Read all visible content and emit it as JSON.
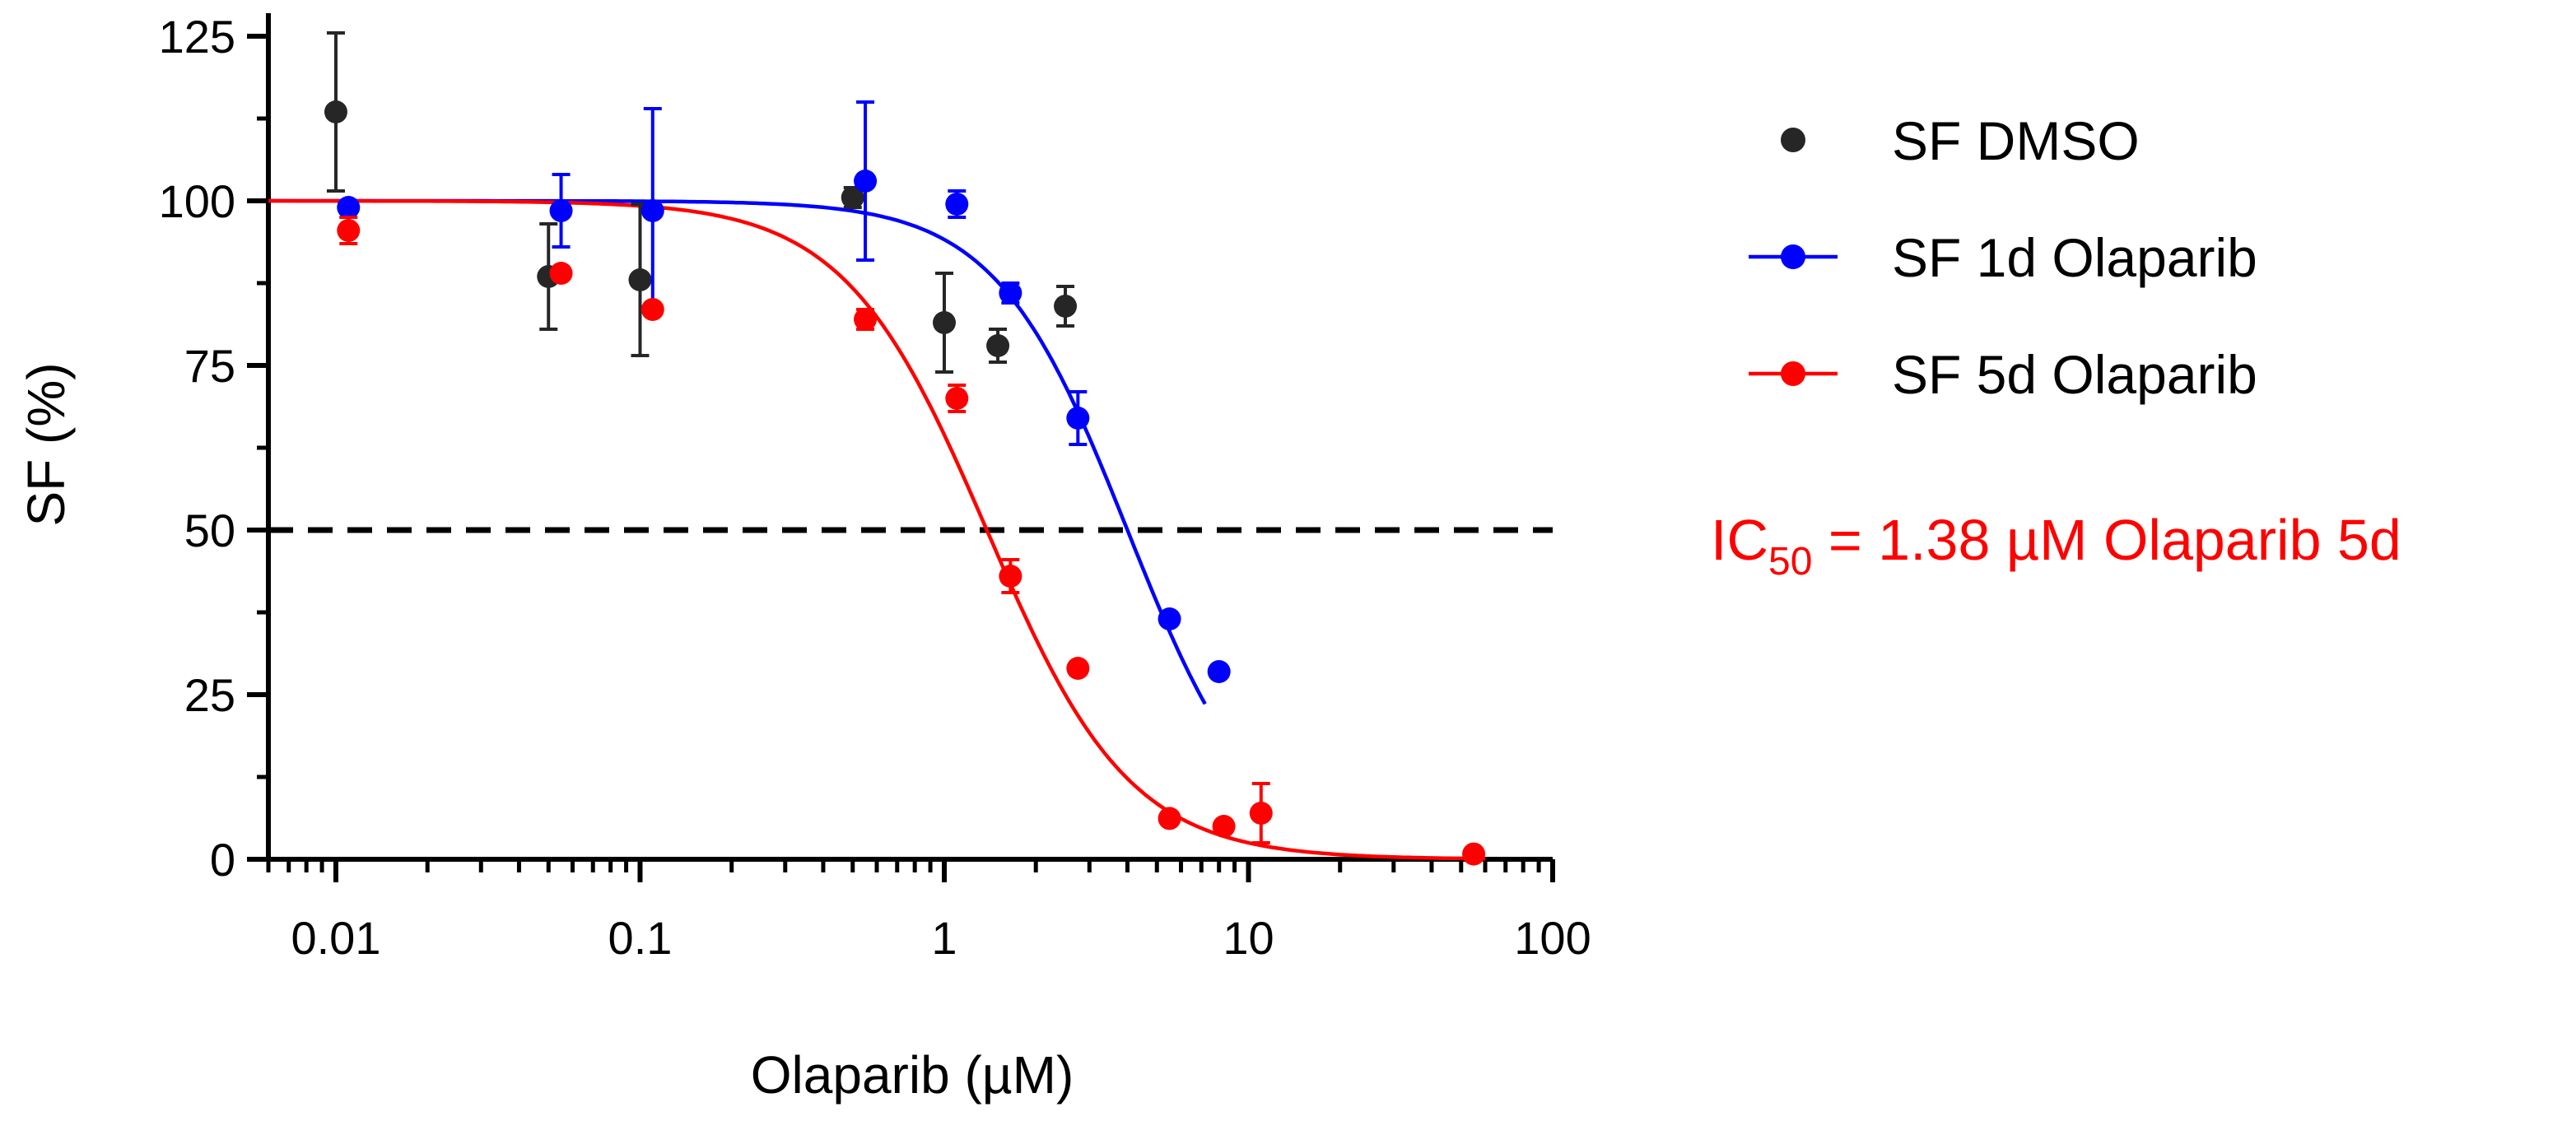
{
  "chart_data": {
    "type": "scatter",
    "title": "",
    "xlabel": "Olaparib (µM)",
    "ylabel": "SF (%)",
    "xscale": "log",
    "xlim": [
      0.006,
      100
    ],
    "ylim": [
      0,
      128
    ],
    "x_ticks": [
      {
        "value": 0.01,
        "label": "0.01"
      },
      {
        "value": 0.1,
        "label": "0.1"
      },
      {
        "value": 1,
        "label": "1"
      },
      {
        "value": 10,
        "label": "10"
      },
      {
        "value": 100,
        "label": "100"
      }
    ],
    "y_ticks": [
      {
        "value": 0,
        "label": "0"
      },
      {
        "value": 25,
        "label": "25"
      },
      {
        "value": 50,
        "label": "50"
      },
      {
        "value": 75,
        "label": "75"
      },
      {
        "value": 100,
        "label": "100"
      },
      {
        "value": 125,
        "label": "125"
      }
    ],
    "reference_line": {
      "y": 50,
      "style": "dashed",
      "color": "#000000"
    },
    "legend_position": "right",
    "series": [
      {
        "name": "SF DMSO",
        "color": "#262626",
        "fit": false,
        "points": [
          {
            "x": 0.01,
            "y": 113.5,
            "err": 12
          },
          {
            "x": 0.05,
            "y": 88.5,
            "err": 8
          },
          {
            "x": 0.1,
            "y": 88,
            "err": 11.5
          },
          {
            "x": 0.5,
            "y": 100.5,
            "err": 1.5
          },
          {
            "x": 1.0,
            "y": 81.5,
            "err": 7.5
          },
          {
            "x": 1.5,
            "y": 78,
            "err": 2.5
          },
          {
            "x": 2.5,
            "y": 84,
            "err": 3
          }
        ]
      },
      {
        "name": "SF 1d Olaparib",
        "color": "#0000ff",
        "fit": true,
        "fit_params": {
          "top": 100,
          "bottom": 0,
          "ic50": 4.0,
          "hill": 2.0,
          "x_range": [
            0.006,
            7.2
          ]
        },
        "points": [
          {
            "x": 0.011,
            "y": 99,
            "err": 0
          },
          {
            "x": 0.055,
            "y": 98.5,
            "err": 5.5
          },
          {
            "x": 0.11,
            "y": 98.5,
            "err": 15.5
          },
          {
            "x": 0.55,
            "y": 103,
            "err": 12
          },
          {
            "x": 1.1,
            "y": 99.5,
            "err": 2
          },
          {
            "x": 1.65,
            "y": 86,
            "err": 1.5
          },
          {
            "x": 2.75,
            "y": 67,
            "err": 4
          },
          {
            "x": 5.5,
            "y": 36.5,
            "err": 0
          },
          {
            "x": 8.0,
            "y": 28.5,
            "err": 0
          }
        ]
      },
      {
        "name": "SF 5d Olaparib",
        "color": "#ff0000",
        "fit": true,
        "fit_params": {
          "top": 100,
          "bottom": 0,
          "ic50": 1.38,
          "hill": 1.85,
          "x_range": [
            0.006,
            60
          ]
        },
        "points": [
          {
            "x": 0.011,
            "y": 95.5,
            "err": 2
          },
          {
            "x": 0.055,
            "y": 89,
            "err": 0
          },
          {
            "x": 0.11,
            "y": 83.5,
            "err": 0
          },
          {
            "x": 0.55,
            "y": 82,
            "err": 1.5
          },
          {
            "x": 1.1,
            "y": 70,
            "err": 2
          },
          {
            "x": 1.65,
            "y": 43,
            "err": 2.5
          },
          {
            "x": 2.75,
            "y": 29,
            "err": 0
          },
          {
            "x": 5.5,
            "y": 6.2,
            "err": 0
          },
          {
            "x": 8.3,
            "y": 5,
            "err": 0
          },
          {
            "x": 11,
            "y": 7,
            "err": 4.5
          },
          {
            "x": 55,
            "y": 0.8,
            "err": 0
          }
        ]
      }
    ],
    "annotation": {
      "prefix": "IC",
      "subscript": "50",
      "suffix": " = 1.38 µM Olaparib 5d",
      "color": "#ff0000"
    }
  }
}
